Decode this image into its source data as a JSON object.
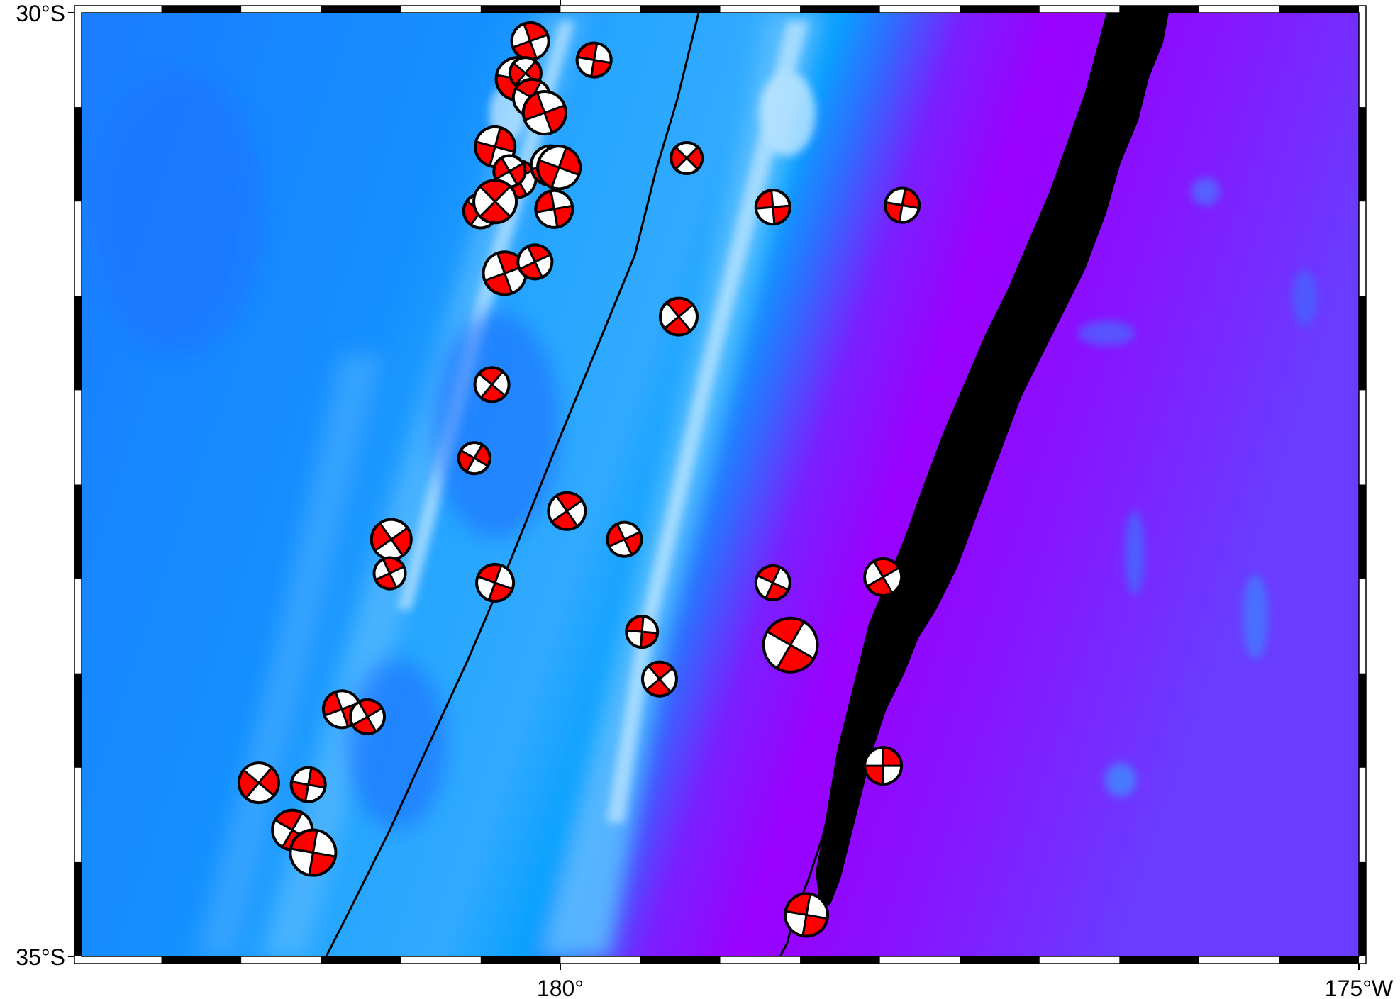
{
  "map": {
    "labels": {
      "lat_top": "30°S",
      "lat_bottom": "35°S",
      "lon_center": "180°",
      "lon_right": "175°W"
    },
    "lon_range": [
      177,
      185
    ],
    "lat_range": [
      -35,
      -30
    ],
    "colors": {
      "deep_ocean": "#9a00ff",
      "ocean_mid": "#1a86ff",
      "ridge_light": "#b8e4ff",
      "trench": "#000000",
      "beachball_red": "#ff0000",
      "frame": "#000000"
    },
    "focal_mechanisms": [
      {
        "lon": 179.81,
        "lat": -30.15,
        "mag": 5.2,
        "rot": -20
      },
      {
        "lon": 179.73,
        "lat": -30.35,
        "mag": 5.4,
        "rot": 10
      },
      {
        "lon": 179.78,
        "lat": -30.32,
        "mag": 5.0,
        "rot": 40
      },
      {
        "lon": 179.82,
        "lat": -30.45,
        "mag": 5.2,
        "rot": -60
      },
      {
        "lon": 179.9,
        "lat": -30.53,
        "mag": 5.4,
        "rot": 70
      },
      {
        "lon": 180.21,
        "lat": -30.25,
        "mag": 5.1,
        "rot": 100
      },
      {
        "lon": 179.59,
        "lat": -30.71,
        "mag": 5.3,
        "rot": 15
      },
      {
        "lon": 179.73,
        "lat": -30.88,
        "mag": 5.2,
        "rot": -30
      },
      {
        "lon": 179.68,
        "lat": -30.84,
        "mag": 5.0,
        "rot": 60
      },
      {
        "lon": 179.94,
        "lat": -30.81,
        "mag": 5.3,
        "rot": -10
      },
      {
        "lon": 179.99,
        "lat": -30.82,
        "mag": 5.4,
        "rot": 20
      },
      {
        "lon": 179.5,
        "lat": -31.05,
        "mag": 5.1,
        "rot": 35
      },
      {
        "lon": 179.59,
        "lat": -31.0,
        "mag": 5.4,
        "rot": -45
      },
      {
        "lon": 179.96,
        "lat": -31.04,
        "mag": 5.2,
        "rot": 80
      },
      {
        "lon": 180.79,
        "lat": -30.77,
        "mag": 5.0,
        "rot": 45
      },
      {
        "lon": 181.33,
        "lat": -31.03,
        "mag": 5.1,
        "rot": -95
      },
      {
        "lon": 179.65,
        "lat": -31.38,
        "mag": 5.4,
        "rot": 160
      },
      {
        "lon": 179.84,
        "lat": -31.32,
        "mag": 5.1,
        "rot": -25
      },
      {
        "lon": 180.74,
        "lat": -31.61,
        "mag": 5.2,
        "rot": 140
      },
      {
        "lon": 179.57,
        "lat": -31.97,
        "mag": 5.1,
        "rot": -50
      },
      {
        "lon": 179.46,
        "lat": -32.36,
        "mag": 5.0,
        "rot": 30
      },
      {
        "lon": 180.4,
        "lat": -32.79,
        "mag": 5.1,
        "rot": -115
      },
      {
        "lon": 178.94,
        "lat": -32.79,
        "mag": 5.3,
        "rot": 55
      },
      {
        "lon": 178.93,
        "lat": -32.97,
        "mag": 5.0,
        "rot": -25
      },
      {
        "lon": 179.59,
        "lat": -33.02,
        "mag": 5.2,
        "rot": 110
      },
      {
        "lon": 181.33,
        "lat": -33.02,
        "mag": 5.1,
        "rot": -65
      },
      {
        "lon": 180.51,
        "lat": -33.28,
        "mag": 5.0,
        "rot": 95
      },
      {
        "lon": 180.62,
        "lat": -33.53,
        "mag": 5.1,
        "rot": -40
      },
      {
        "lon": 181.44,
        "lat": -33.35,
        "mag": 5.8,
        "rot": 120
      },
      {
        "lon": 178.63,
        "lat": -33.69,
        "mag": 5.2,
        "rot": 70
      },
      {
        "lon": 178.79,
        "lat": -33.73,
        "mag": 5.1,
        "rot": -30
      },
      {
        "lon": 178.11,
        "lat": -34.08,
        "mag": 5.3,
        "rot": 40
      },
      {
        "lon": 178.42,
        "lat": -34.09,
        "mag": 5.1,
        "rot": 10
      },
      {
        "lon": 178.32,
        "lat": -34.33,
        "mag": 5.3,
        "rot": -60
      },
      {
        "lon": 178.45,
        "lat": -34.45,
        "mag": 5.5,
        "rot": 100
      },
      {
        "lon": 180.04,
        "lat": -32.64,
        "mag": 5.2,
        "rot": -35
      },
      {
        "lon": 182.02,
        "lat": -32.99,
        "mag": 5.2,
        "rot": 150
      },
      {
        "lon": 182.02,
        "lat": -33.99,
        "mag": 5.2,
        "rot": 0
      },
      {
        "lon": 181.54,
        "lat": -34.78,
        "mag": 5.4,
        "rot": -80
      },
      {
        "lon": 182.14,
        "lat": -31.02,
        "mag": 5.1,
        "rot": -170
      }
    ]
  }
}
